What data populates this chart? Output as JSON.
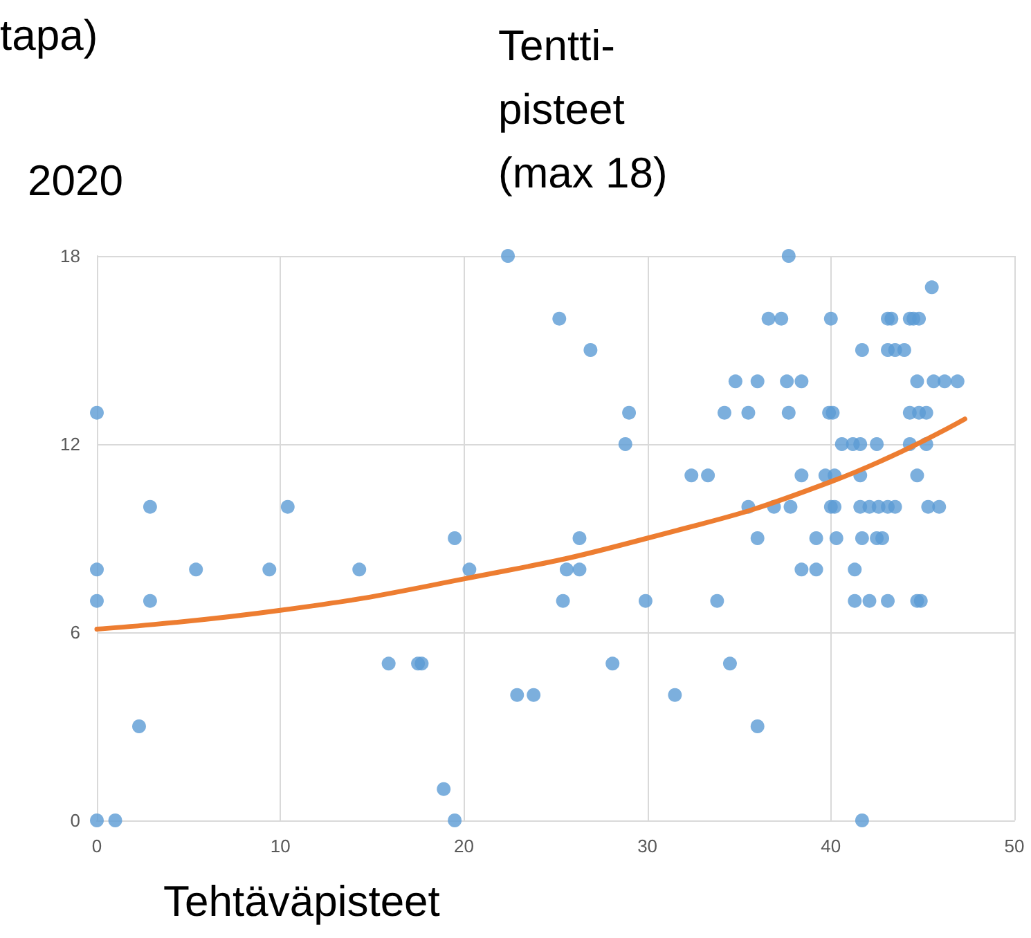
{
  "chart_data": {
    "type": "scatter",
    "xlabel": "Tehtäväpisteet",
    "ylabel": "Tentti-\npisteet\n(max 18)",
    "annotations": [
      "tapa)",
      "2020"
    ],
    "xlim": [
      0,
      50
    ],
    "xticks": [
      0,
      10,
      20,
      30,
      40,
      50
    ],
    "ylim": [
      0,
      18
    ],
    "yticks": [
      0,
      6,
      12,
      18
    ],
    "grid": true,
    "marker": "circle",
    "series": [
      {
        "color": "#5b9bd5",
        "x": [
          0,
          0,
          0,
          0,
          1,
          2.3,
          2.9,
          2.9,
          5.4,
          9.4,
          10.4,
          14.3,
          15.9,
          17.5,
          17.7,
          18.9,
          19.5,
          19.5,
          20.3,
          22.4,
          22.9,
          23.8,
          25.2,
          25.4,
          25.6,
          26.3,
          26.3,
          26.9,
          28.1,
          28.8,
          29,
          29.9,
          31.5,
          32.4,
          33.3,
          33.8,
          34.2,
          34.5,
          34.8,
          35.5,
          35.5,
          36,
          36,
          36,
          36.6,
          36.9,
          37.3,
          37.6,
          37.7,
          37.7,
          37.8,
          38.4,
          38.4,
          38.4,
          39.2,
          39.2,
          39.7,
          39.9,
          40,
          40,
          40.1,
          40.2,
          40.2,
          40.3,
          40.6,
          41.2,
          41.3,
          41.3,
          41.6,
          41.6,
          41.6,
          41.7,
          41.7,
          41.7,
          42.1,
          42.1,
          42.5,
          42.5,
          42.6,
          42.8,
          43.1,
          43.1,
          43.1,
          43.1,
          43.3,
          43.5,
          43.5,
          44,
          44.3,
          44.3,
          44.3,
          44.5,
          44.7,
          44.7,
          44.7,
          44.8,
          44.8,
          44.9,
          45.2,
          45.2,
          45.3,
          45.5,
          45.6,
          45.9,
          46.2,
          46.9
        ],
        "values": [
          13,
          8,
          7,
          0,
          0,
          3,
          10,
          7,
          8,
          8,
          10,
          8,
          5,
          5,
          5,
          1,
          9,
          0,
          8,
          18,
          4,
          4,
          16,
          7,
          8,
          9,
          8,
          15,
          5,
          12,
          13,
          7,
          4,
          11,
          11,
          7,
          13,
          5,
          14,
          13,
          10,
          14,
          9,
          3,
          16,
          10,
          16,
          14,
          18,
          13,
          10,
          14,
          11,
          8,
          9,
          8,
          11,
          13,
          16,
          10,
          13,
          11,
          10,
          9,
          12,
          12,
          8,
          7,
          12,
          11,
          10,
          15,
          9,
          0,
          10,
          7,
          12,
          9,
          10,
          9,
          16,
          15,
          10,
          7,
          16,
          15,
          10,
          15,
          16,
          13,
          12,
          16,
          14,
          11,
          7,
          13,
          16,
          7,
          13,
          12,
          10,
          17,
          14,
          10,
          14,
          14
        ]
      },
      {
        "type": "line",
        "color": "#ed7d31",
        "marker": "none",
        "x": [
          0,
          10,
          20,
          30,
          40,
          47.3
        ],
        "values": [
          6.1,
          6.7,
          7.7,
          9,
          10.8,
          12.8
        ]
      }
    ]
  }
}
